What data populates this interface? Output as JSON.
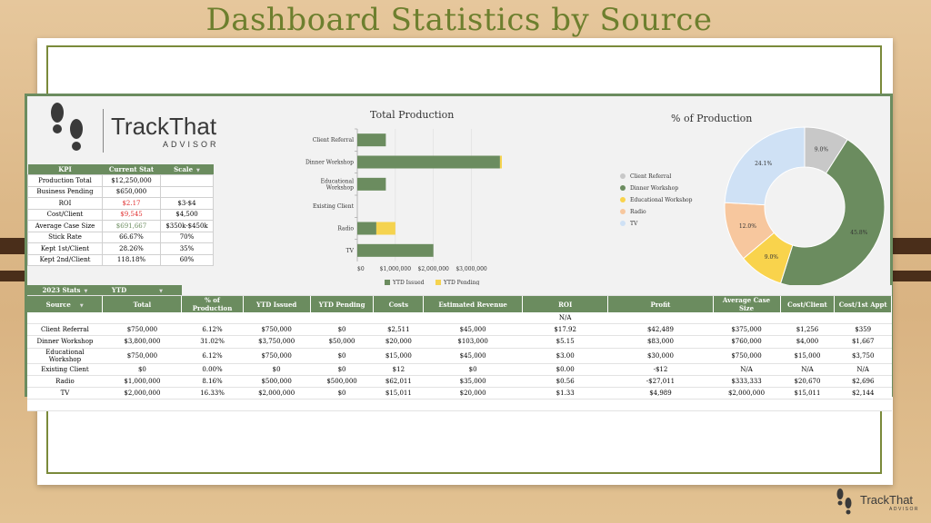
{
  "slide": {
    "title": "Dashboard Statistics by Source"
  },
  "logo": {
    "line1": "TrackThat",
    "line2": "ADVISOR"
  },
  "kpi_table": {
    "headers": [
      "KPI",
      "Current Stat",
      "Scale"
    ],
    "rows": [
      {
        "kpi": "Production Total",
        "stat": "$12,250,000",
        "scale": ""
      },
      {
        "kpi": "Business Pending",
        "stat": "$650,000",
        "scale": ""
      },
      {
        "kpi": "ROI",
        "stat": "$2.17",
        "scale": "$3-$4",
        "stat_color": "red"
      },
      {
        "kpi": "Cost/Client",
        "stat": "$9,545",
        "scale": "$4,500",
        "stat_color": "red"
      },
      {
        "kpi": "Average Case Size",
        "stat": "$691,667",
        "scale": "$350k-$450k",
        "stat_color": "green"
      },
      {
        "kpi": "Stick Rate",
        "stat": "66.67%",
        "scale": "70%"
      },
      {
        "kpi": "Kept 1st/Client",
        "stat": "28.26%",
        "scale": "35%"
      },
      {
        "kpi": "Kept 2nd/Client",
        "stat": "118.18%",
        "scale": "60%"
      }
    ]
  },
  "stats_table": {
    "year_selector": "2023 Stats",
    "period_selector": "YTD",
    "headers": [
      "Source",
      "Total",
      "% of Production",
      "YTD Issued",
      "YTD Pending",
      "Costs",
      "Estimated Revenue",
      "ROI",
      "Profit",
      "Average Case Size",
      "Cost/Client",
      "Cost/1st Appt"
    ],
    "roi_note": "N/A",
    "rows": [
      [
        "Client Referral",
        "$750,000",
        "6.12%",
        "$750,000",
        "$0",
        "$2,511",
        "$45,000",
        "$17.92",
        "$42,489",
        "$375,000",
        "$1,256",
        "$359"
      ],
      [
        "Dinner Workshop",
        "$3,800,000",
        "31.02%",
        "$3,750,000",
        "$50,000",
        "$20,000",
        "$103,000",
        "$5.15",
        "$83,000",
        "$760,000",
        "$4,000",
        "$1,667"
      ],
      [
        "Educational Workshop",
        "$750,000",
        "6.12%",
        "$750,000",
        "$0",
        "$15,000",
        "$45,000",
        "$3.00",
        "$30,000",
        "$750,000",
        "$15,000",
        "$3,750"
      ],
      [
        "Existing Client",
        "$0",
        "0.00%",
        "$0",
        "$0",
        "$12",
        "$0",
        "$0.00",
        "-$12",
        "N/A",
        "N/A",
        "N/A"
      ],
      [
        "Radio",
        "$1,000,000",
        "8.16%",
        "$500,000",
        "$500,000",
        "$62,011",
        "$35,000",
        "$0.56",
        "-$27,011",
        "$333,333",
        "$20,670",
        "$2,696"
      ],
      [
        "TV",
        "$2,000,000",
        "16.33%",
        "$2,000,000",
        "$0",
        "$15,011",
        "$20,000",
        "$1.33",
        "$4,989",
        "$2,000,000",
        "$15,011",
        "$2,144"
      ]
    ]
  },
  "chart_data": [
    {
      "type": "bar",
      "orientation": "horizontal",
      "stacked": true,
      "title": "Total Production",
      "categories": [
        "Client Referral",
        "Dinner Workshop",
        "Educational Workshop",
        "Existing Client",
        "Radio",
        "TV"
      ],
      "category_labels": [
        [
          "Client Referral"
        ],
        [
          "Dinner Workshop"
        ],
        [
          "Educational",
          "Workshop"
        ],
        [
          "Existing Client"
        ],
        [
          "Radio"
        ],
        [
          "TV"
        ]
      ],
      "series": [
        {
          "name": "YTD Issued",
          "color": "#6b8c5f",
          "values": [
            750000,
            3750000,
            750000,
            0,
            500000,
            2000000
          ]
        },
        {
          "name": "YTD Pending",
          "color": "#f5d34f",
          "values": [
            0,
            50000,
            0,
            0,
            500000,
            0
          ]
        }
      ],
      "xlim": [
        0,
        3800000
      ],
      "x_ticks": [
        0,
        1000000,
        2000000,
        3000000
      ],
      "x_tick_labels": [
        "$0",
        "$1,000,000",
        "$2,000,000",
        "$3,000,000"
      ],
      "legend": "bottom",
      "grid": true
    },
    {
      "type": "pie",
      "donut": true,
      "title": "% of Production",
      "labels": [
        "Client Referral",
        "Dinner Workshop",
        "Educational Workshop",
        "Radio",
        "TV"
      ],
      "values": [
        9.0,
        45.8,
        9.0,
        12.0,
        24.1
      ],
      "value_labels": [
        "9.0%",
        "45.8%",
        "9.0%",
        "12.0%",
        "24.1%"
      ],
      "colors": [
        "#c8c8c8",
        "#6b8c5f",
        "#f9d34c",
        "#f7c79e",
        "#cfe1f5"
      ],
      "legend": "left"
    }
  ]
}
